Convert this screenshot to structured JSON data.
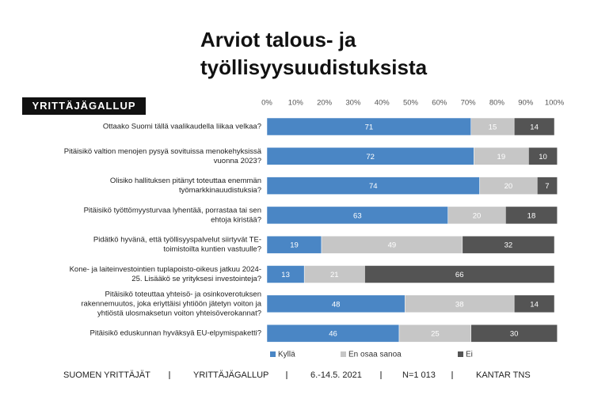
{
  "chart_data": {
    "type": "stacked-bar-horizontal",
    "title": [
      "Arviot talous- ja",
      "työllisyysuudistuksista"
    ],
    "badge": "YRITTÄJÄGALLUP",
    "categories": [
      [
        "Ottaako Suomi tällä vaalikaudella liikaa velkaa?"
      ],
      [
        "Pitäisikö valtion menojen pysyä sovituissa menokehyksissä",
        "vuonna 2023?"
      ],
      [
        "Olisiko hallituksen pitänyt toteuttaa enemmän",
        "työmarkkinauudistuksia?"
      ],
      [
        "Pitäisikö työttömyysturvaa lyhentää, porrastaa tai sen",
        "ehtoja kiristää?"
      ],
      [
        "Pidätkö hyvänä, että työllisyyspalvelut siirtyvät TE-",
        "toimistoilta kuntien vastuulle?"
      ],
      [
        "Kone- ja laiteinvestointien tuplapoisto-oikeus jatkuu 2024-",
        "25. Lisääkö se yrityksesi investointeja?"
      ],
      [
        "Pitäisikö toteuttaa yhteisö- ja osinkoverotuksen",
        "rakennemuutos, joka eriyttäisi yhtiöön jätetyn voiton ja",
        "yhtiöstä ulosmaksetun voiton yhteisöverokannat?"
      ],
      [
        "Pitäisikö eduskunnan hyväksyä EU-elpymispaketti?"
      ]
    ],
    "series": [
      {
        "name": "Kyllä",
        "color": "#4a86c5",
        "values": [
          71,
          72,
          74,
          63,
          19,
          13,
          48,
          46
        ]
      },
      {
        "name": "En osaa sanoa",
        "color": "#c6c6c6",
        "values": [
          15,
          19,
          20,
          20,
          49,
          21,
          38,
          25
        ]
      },
      {
        "name": "Ei",
        "color": "#545454",
        "values": [
          14,
          10,
          7,
          18,
          32,
          66,
          14,
          30
        ]
      }
    ],
    "xlim": [
      0,
      100
    ],
    "xticks": [
      {
        "value": 0,
        "label": "0%"
      },
      {
        "value": 10,
        "label": "10%"
      },
      {
        "value": 20,
        "label": "20%"
      },
      {
        "value": 30,
        "label": "30%"
      },
      {
        "value": 40,
        "label": "40%"
      },
      {
        "value": 50,
        "label": "50%"
      },
      {
        "value": 60,
        "label": "60%"
      },
      {
        "value": 70,
        "label": "70%"
      },
      {
        "value": 80,
        "label": "80%"
      },
      {
        "value": 90,
        "label": "90%"
      },
      {
        "value": 100,
        "label": "100%"
      }
    ],
    "footer": [
      "SUOMEN YRITTÄJÄT",
      "YRITTÄJÄGALLUP",
      "6.-14.5. 2021",
      "N=1 013",
      "KANTAR TNS"
    ]
  }
}
